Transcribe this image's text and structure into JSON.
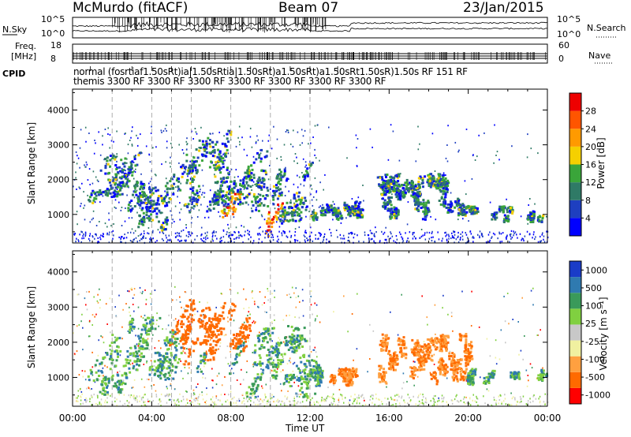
{
  "header": {
    "station": "McMurdo (fitACF)",
    "beam": "Beam 07",
    "date": "23/Jan/2015"
  },
  "left_labels": {
    "nsky": "N.Sky",
    "freq": "Freq.",
    "freq_unit": "[MHz]",
    "cpid": "CPID"
  },
  "right_labels": {
    "nsearch": "N.Search",
    "nave": "Nave"
  },
  "colors": {
    "power": [
      "#0000ff",
      "#1e3fc0",
      "#2f7a66",
      "#3aa53a",
      "#f5d000",
      "#ff9a00",
      "#ff5500",
      "#ee0000"
    ],
    "velocity": [
      "#ff0000",
      "#ff6a00",
      "#ffa040",
      "#f0f0a0",
      "#c8c8c8",
      "#80d040",
      "#3a9a5a",
      "#2f7ab0",
      "#1a3cc8"
    ]
  },
  "chart_data": [
    {
      "type": "line",
      "name": "noise",
      "ylabels_left": [
        "10^5",
        "10^0"
      ],
      "ylabels_right": [
        "10^5",
        "10^0"
      ]
    },
    {
      "type": "line",
      "name": "frequency",
      "ylabel": "Freq. [MHz]",
      "yticks_left": [
        "18",
        "8"
      ],
      "yticks_right": [
        "60",
        "0"
      ]
    },
    {
      "type": "table",
      "name": "cpid",
      "row1": "normal  (fosrtiaf1.50sRt)ia|1.50sRtia|1.50sRt)a1.50sRt)a1.50sRt1.50sR)1.50s RF  151  RF",
      "row2": "themis  3300 RF  3300 RF  3300 RF  3300 RF  3300 RF  3300 RF  3300 RF",
      "row1_parts": [
        "normal",
        "(fosrtia",
        "f1.50sRtia",
        "|1.50sRtia",
        "|1.50sRt)a",
        "1.50sRt)a",
        "1.50sRt",
        "1.50sR)",
        "1.50s",
        "RF",
        "151",
        "RF"
      ],
      "row2_parts": [
        "themis",
        "3300 RF",
        "3300 RF",
        "3300 RF",
        "3300 RF",
        "3300 RF",
        "3300 RF",
        "3300 RF"
      ]
    },
    {
      "type": "heatmap",
      "name": "power",
      "ylabel": "Slant Range [km]",
      "yticks": [
        1000,
        2000,
        3000,
        4000
      ],
      "ylim": [
        180,
        4600
      ],
      "xlim": [
        0,
        24
      ],
      "colorbar_label": "Power [dB]",
      "colorbar_ticks": [
        4,
        8,
        12,
        16,
        20,
        24,
        28
      ]
    },
    {
      "type": "heatmap",
      "name": "velocity",
      "ylabel": "Slant Range [km]",
      "yticks": [
        1000,
        2000,
        3000,
        4000
      ],
      "ylim": [
        180,
        4600
      ],
      "xlim": [
        0,
        24
      ],
      "xlabel": "Time UT",
      "xticks": [
        "00:00",
        "04:00",
        "08:00",
        "12:00",
        "16:00",
        "20:00",
        "00:00"
      ],
      "colorbar_label": "Velocity [m s⁻¹]",
      "colorbar_ticks": [
        "1000",
        "500",
        "100",
        "25",
        "-25",
        "-100",
        "-500",
        "-1000"
      ]
    }
  ]
}
